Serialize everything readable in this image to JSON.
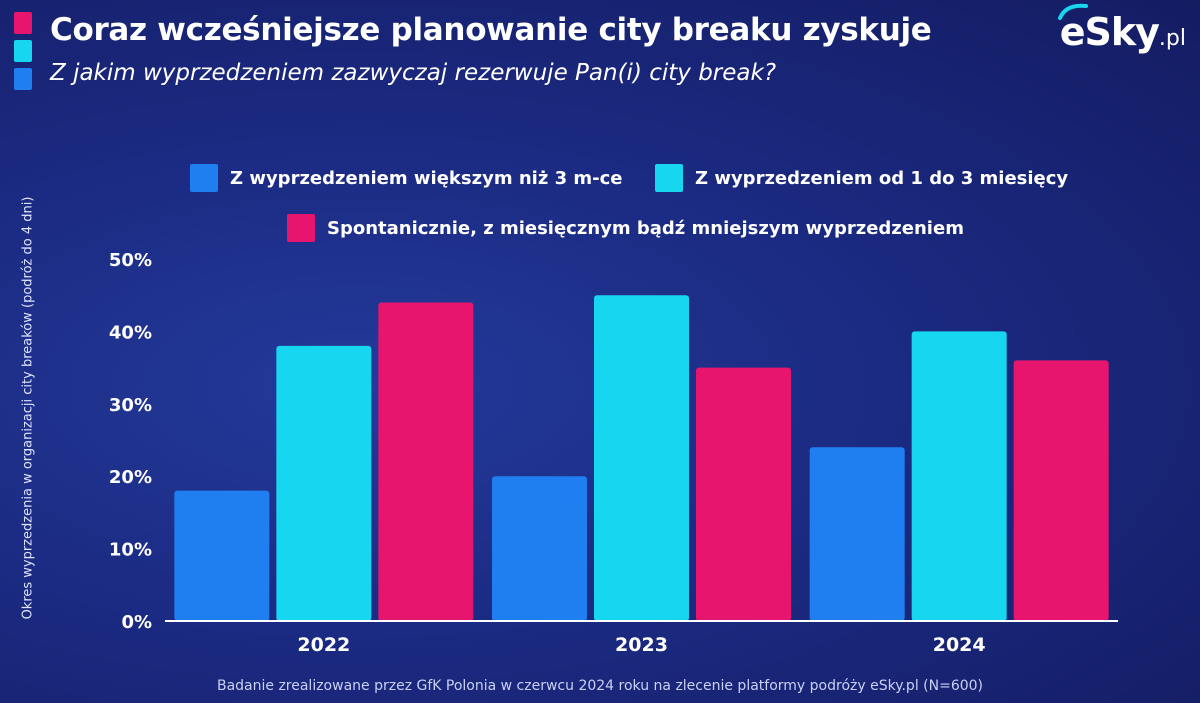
{
  "header": {
    "title": "Coraz wcześniejsze planowanie city breaku zyskuje",
    "subtitle": "Z jakim wyprzedzeniem zazwyczaj rezerwuje Pan(i) city break?",
    "accent_colors": [
      "#e8156e",
      "#16d6f0",
      "#1f7ff0"
    ]
  },
  "logo": {
    "main": "eSky",
    "suffix": ".pl"
  },
  "footer": {
    "text": "Badanie zrealizowane przez GfK Polonia w czerwcu 2024 roku na zlecenie platformy podróży eSky.pl (N=600)"
  },
  "chart_data": {
    "type": "bar",
    "categories": [
      "2022",
      "2023",
      "2024"
    ],
    "series": [
      {
        "name": "Z wyprzedzeniem większym niż 3 m-ce",
        "values": [
          18,
          20,
          24
        ],
        "color": "#1f7ff0"
      },
      {
        "name": "Z wyprzedzeniem od 1 do 3 miesięcy",
        "values": [
          38,
          45,
          40
        ],
        "color": "#16d6f0"
      },
      {
        "name": "Spontanicznie, z miesięcznym bądź mniejszym wyprzedzeniem",
        "values": [
          44,
          35,
          36
        ],
        "color": "#e8156e"
      }
    ],
    "ylabel": "Okres wyprzedzenia w organizacji city breaków (podróż do 4 dni)",
    "xlabel": "",
    "ylim": [
      0,
      50
    ],
    "yticks": [
      "0%",
      "10%",
      "20%",
      "30%",
      "40%",
      "50%"
    ],
    "grid": false,
    "legend_position": "top"
  }
}
